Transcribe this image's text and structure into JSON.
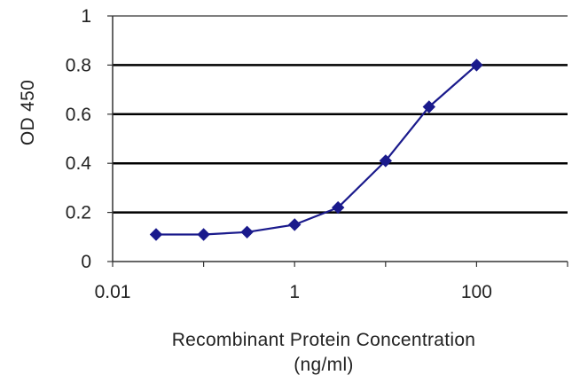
{
  "chart_data": {
    "type": "line",
    "title": "",
    "xlabel": "Recombinant Protein Concentration",
    "xlabel_unit": "(ng/ml)",
    "ylabel": "OD 450",
    "x_scale": "log",
    "xlim": [
      0.01,
      1000
    ],
    "ylim": [
      0,
      1
    ],
    "x_ticks": [
      0.01,
      1,
      100
    ],
    "x_tick_labels": [
      "0.01",
      "1",
      "100"
    ],
    "y_ticks": [
      0,
      0.2,
      0.4,
      0.6,
      0.8,
      1
    ],
    "y_tick_labels": [
      "0",
      "0.2",
      "0.4",
      "0.6",
      "0.8",
      "1"
    ],
    "grid": "horizontal",
    "legend": "none",
    "series": [
      {
        "x": [
          0.03,
          0.1,
          0.3,
          1,
          3,
          10,
          30,
          100
        ],
        "y": [
          0.11,
          0.11,
          0.12,
          0.15,
          0.22,
          0.41,
          0.63,
          0.8
        ],
        "color": "#1a1a8c",
        "marker": "diamond"
      }
    ]
  }
}
